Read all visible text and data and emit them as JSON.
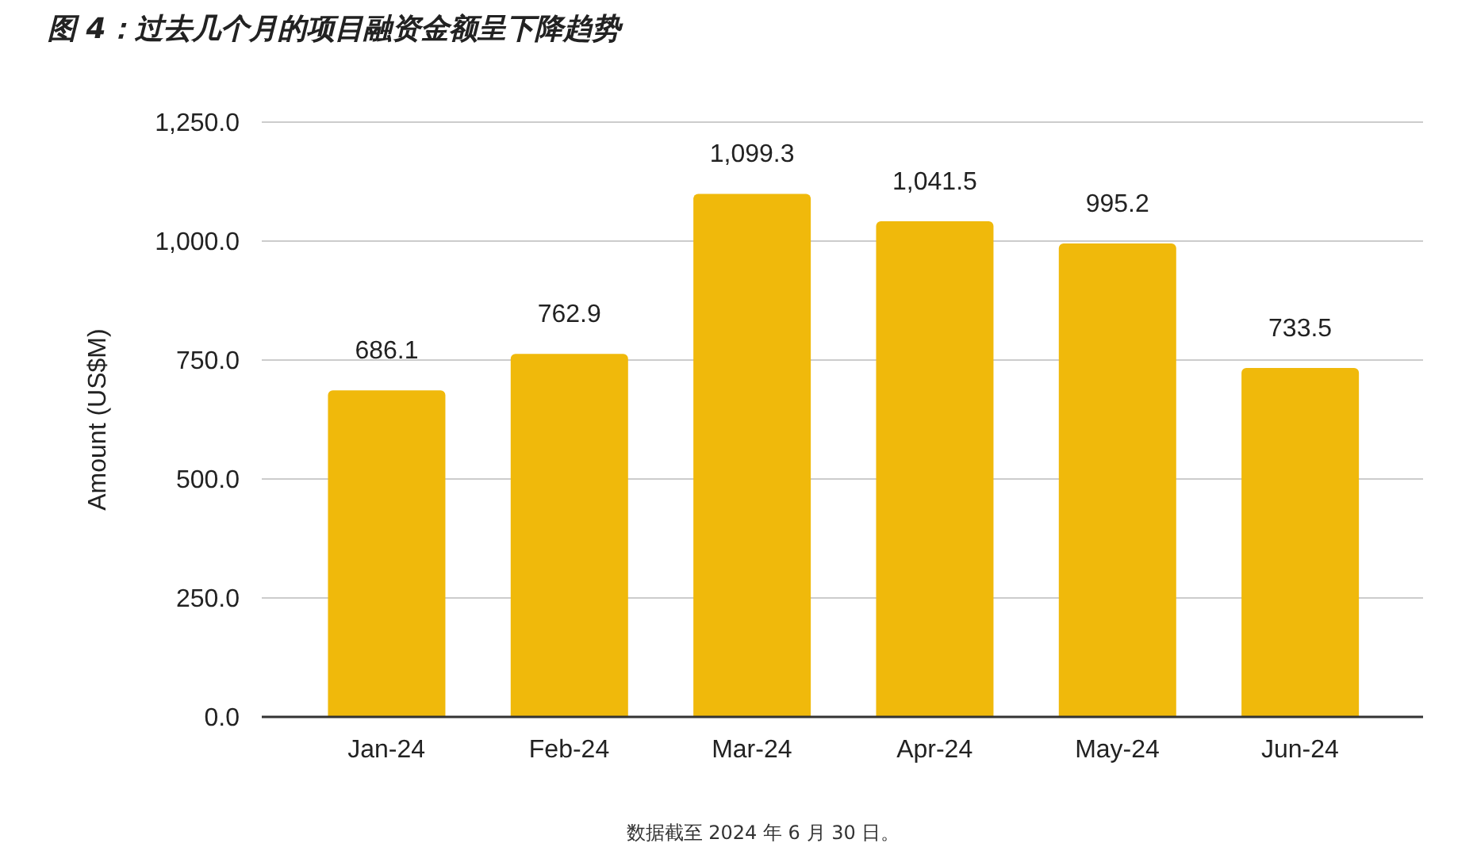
{
  "chart_data": {
    "type": "bar",
    "title": "图 4：过去几个月的项目融资金额呈下降趋势",
    "ylabel": "Amount (US$M)",
    "categories": [
      "Jan-24",
      "Feb-24",
      "Mar-24",
      "Apr-24",
      "May-24",
      "Jun-24"
    ],
    "values": [
      686.1,
      762.9,
      1099.3,
      1041.5,
      995.2,
      733.5
    ],
    "value_labels": [
      "686.1",
      "762.9",
      "1,099.3",
      "1,041.5",
      "995.2",
      "733.5"
    ],
    "color": "#f0b90b",
    "ylim": [
      0,
      1250
    ],
    "yticks": [
      {
        "value": 0,
        "label": "0.0"
      },
      {
        "value": 250,
        "label": "250.0"
      },
      {
        "value": 500,
        "label": "500.0"
      },
      {
        "value": 750,
        "label": "750.0"
      },
      {
        "value": 1000,
        "label": "1,000.0"
      },
      {
        "value": 1250,
        "label": "1,250.0"
      }
    ],
    "grid": "y",
    "annotations": [
      "数据截至 2024 年 6 月 30 日。"
    ]
  }
}
